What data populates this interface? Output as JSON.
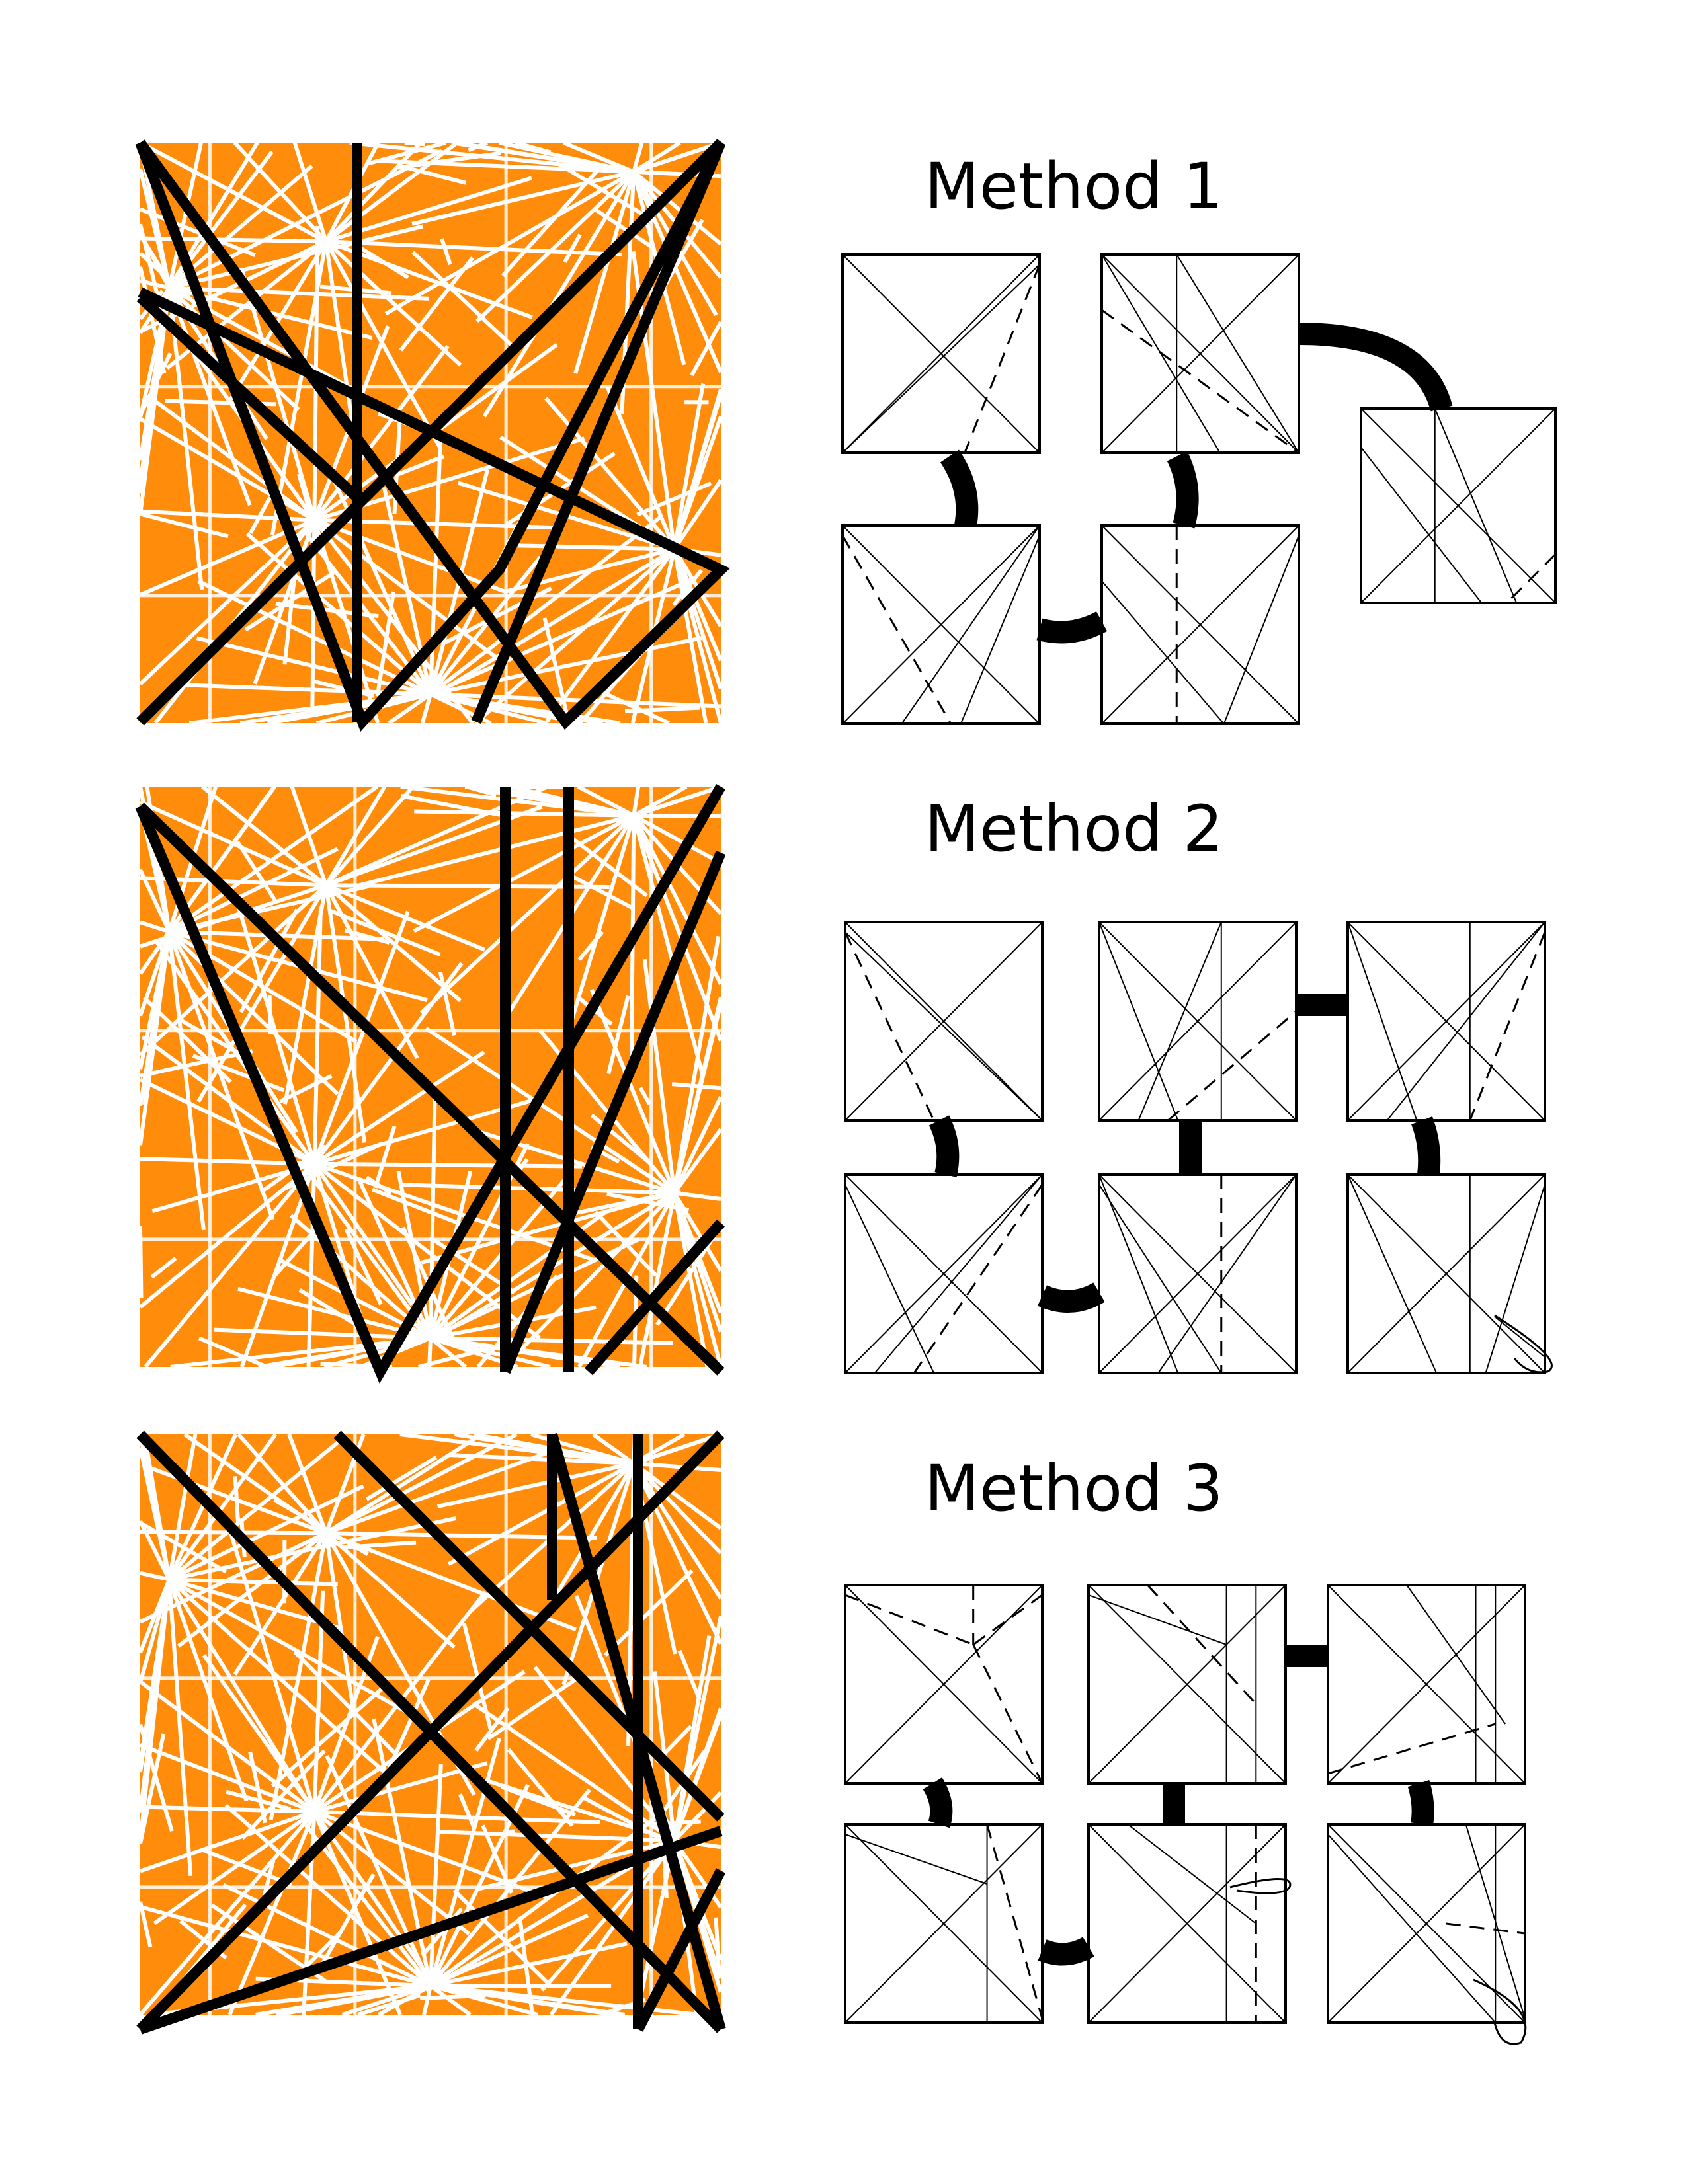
{
  "methods": [
    {
      "title": "Method 1",
      "steps": 5
    },
    {
      "title": "Method 2",
      "steps": 6
    },
    {
      "title": "Method 3",
      "steps": 6
    }
  ],
  "colors": {
    "paper": "#ff8c0a",
    "crease": "#ffffff",
    "fold_line": "#000000",
    "diagram_line": "#000000",
    "connector": "#000000"
  }
}
